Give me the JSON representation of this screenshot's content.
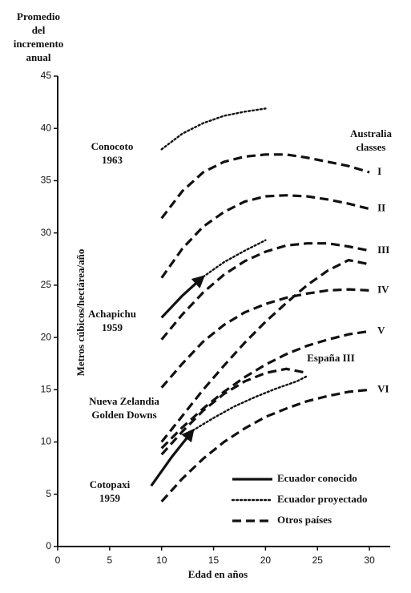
{
  "chart_data": {
    "type": "line",
    "y_title_lines": [
      "Promedio",
      "del",
      "incremento",
      "anual"
    ],
    "y_label": "Metros cúbicos/hectárea/año",
    "x_label": "Edad en años",
    "group_title_lines": [
      "Australia",
      "classes"
    ],
    "xlim": [
      0,
      32
    ],
    "xticks": [
      0,
      5,
      10,
      15,
      20,
      25,
      30
    ],
    "ylim": [
      0,
      45
    ],
    "yticks": [
      0,
      5,
      10,
      15,
      20,
      25,
      30,
      35,
      40,
      45
    ],
    "color": "#111111",
    "legend": [
      {
        "label": "Ecuador conocido",
        "style": "solid"
      },
      {
        "label": "Ecuador proyectado",
        "style": "dotted"
      },
      {
        "label": "Otros países",
        "style": "dashed"
      }
    ],
    "series": [
      {
        "label_lines": [
          "Conocoto",
          "1963"
        ],
        "style": "dotted",
        "x": [
          10,
          12,
          14,
          16,
          18,
          20
        ],
        "values": [
          38,
          39.5,
          40.5,
          41.2,
          41.6,
          41.9
        ]
      },
      {
        "name": "I",
        "style": "dashed",
        "x": [
          10,
          12,
          14,
          16,
          18,
          20,
          22,
          24,
          26,
          28,
          30
        ],
        "values": [
          31.4,
          34,
          35.8,
          36.8,
          37.3,
          37.5,
          37.5,
          37.2,
          36.8,
          36.4,
          35.8
        ]
      },
      {
        "name": "II",
        "style": "dashed",
        "x": [
          10,
          12,
          14,
          16,
          18,
          20,
          22,
          24,
          26,
          28,
          30
        ],
        "values": [
          25.7,
          28.5,
          30.6,
          32,
          33,
          33.5,
          33.6,
          33.5,
          33.2,
          32.8,
          32.3
        ]
      },
      {
        "name": "III",
        "style": "dashed",
        "x": [
          10,
          12,
          14,
          16,
          18,
          20,
          22,
          24,
          26,
          28,
          30
        ],
        "values": [
          19.8,
          22.2,
          24.3,
          26,
          27.3,
          28.2,
          28.8,
          29,
          29,
          28.7,
          28.3
        ]
      },
      {
        "label_lines": [
          "Achapichu",
          "1959"
        ],
        "style": "solid",
        "x": [
          10,
          12,
          14
        ],
        "values": [
          21.9,
          24,
          25.8
        ]
      },
      {
        "style": "dotted",
        "x": [
          14,
          16,
          18,
          20
        ],
        "values": [
          25.8,
          27.2,
          28.3,
          29.3
        ]
      },
      {
        "name": "IV",
        "style": "dashed",
        "x": [
          10,
          12,
          14,
          16,
          18,
          20,
          22,
          24,
          26,
          28,
          30
        ],
        "values": [
          15.2,
          17.5,
          19.6,
          21.2,
          22.4,
          23.2,
          23.8,
          24.2,
          24.5,
          24.6,
          24.5
        ]
      },
      {
        "name": "V",
        "style": "dashed",
        "x": [
          10,
          12,
          14,
          16,
          18,
          20,
          22,
          24,
          26,
          28,
          30
        ],
        "values": [
          9.4,
          11.4,
          13.2,
          14.8,
          16.2,
          17.4,
          18.4,
          19.2,
          19.8,
          20.3,
          20.6
        ]
      },
      {
        "name": "VI",
        "style": "dashed",
        "x": [
          10,
          12,
          14,
          16,
          18,
          20,
          22,
          24,
          26,
          28,
          30
        ],
        "values": [
          4.3,
          6.5,
          8.4,
          10,
          11.3,
          12.4,
          13.2,
          13.9,
          14.4,
          14.8,
          15
        ]
      },
      {
        "label_lines": [
          "Nueva Zelandia",
          "Golden Downs"
        ],
        "style": "dashed",
        "x": [
          10,
          12,
          14,
          16,
          18,
          20,
          22,
          24,
          26,
          28,
          30
        ],
        "values": [
          10,
          12.5,
          15,
          17.3,
          19.5,
          21.5,
          23.3,
          25,
          26.4,
          27.4,
          27
        ]
      },
      {
        "label_lines": [
          "España III"
        ],
        "style": "dashed",
        "x": [
          10,
          12,
          14,
          16,
          18,
          20,
          22,
          24
        ],
        "values": [
          8.8,
          11,
          13,
          14.6,
          15.8,
          16.6,
          17,
          16.6
        ]
      },
      {
        "label_lines": [
          "Cotopaxi",
          "1959"
        ],
        "style": "solid",
        "x": [
          9,
          11,
          13
        ],
        "values": [
          5.8,
          8.6,
          11.1
        ]
      },
      {
        "style": "dotted",
        "x": [
          13,
          15,
          17,
          19,
          21,
          23,
          24
        ],
        "values": [
          11.1,
          12.3,
          13.4,
          14.3,
          15.1,
          15.8,
          16.3
        ]
      }
    ]
  }
}
